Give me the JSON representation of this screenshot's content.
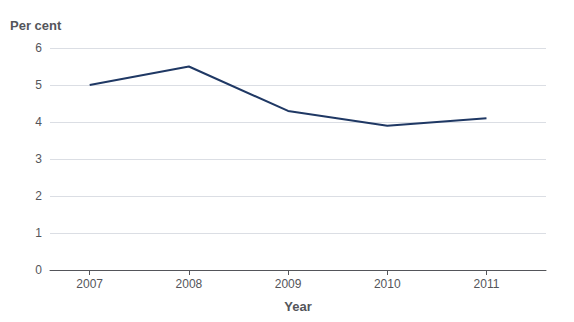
{
  "chart_data": {
    "type": "line",
    "x": [
      2007,
      2008,
      2009,
      2010,
      2011
    ],
    "values": [
      5.0,
      5.5,
      4.3,
      3.9,
      4.1
    ],
    "color": "#1F3864",
    "xlabel": "Year",
    "ylabel": "Per cent",
    "xlim": [
      2006.6,
      2011.6
    ],
    "xticks": [
      2007,
      2008,
      2009,
      2010,
      2011
    ],
    "ylim": [
      0,
      6
    ],
    "yticks": [
      0,
      1,
      2,
      3,
      4,
      5,
      6
    ],
    "grid": true
  }
}
